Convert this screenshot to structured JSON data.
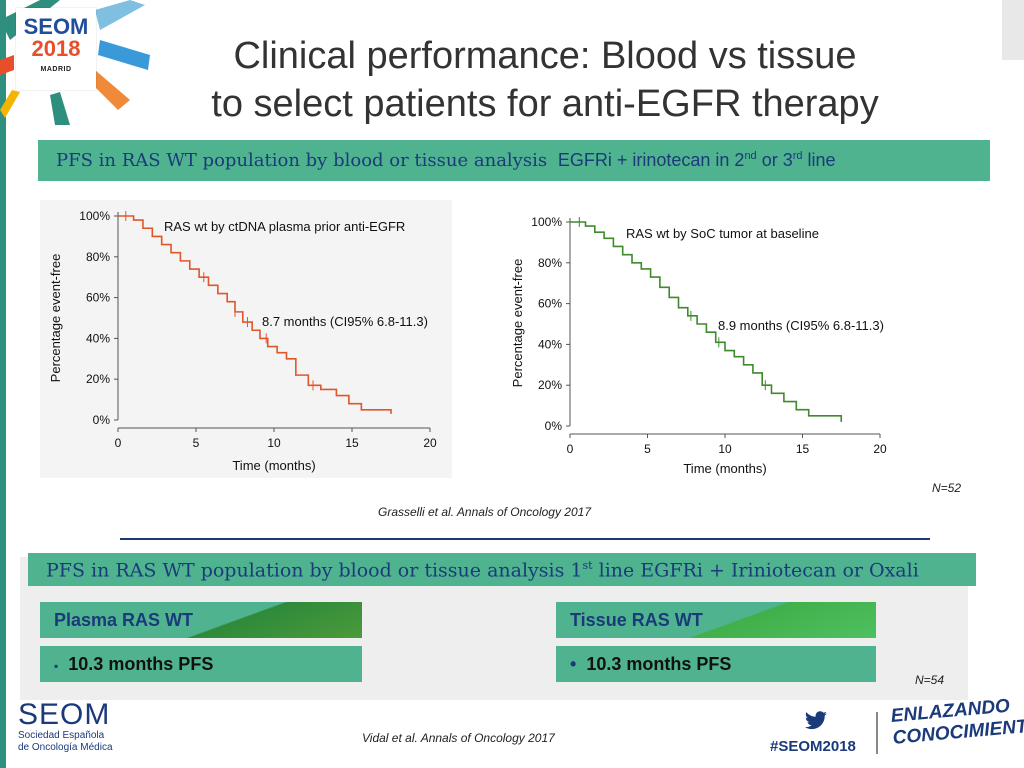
{
  "slide": {
    "logo": {
      "name": "SEOM",
      "year": "2018",
      "city": "MADRID"
    },
    "title_line1": "Clinical performance:  Blood vs tissue",
    "title_line2": "to select patients for anti-EGFR therapy",
    "top_banner": {
      "serif_part": "PFS in RAS WT population by blood or tissue analysis",
      "sans_part": "EGFRi + irinotecan in 2",
      "sup1": "nd",
      "mid": " or 3",
      "sup2": "rd",
      "end": " line"
    },
    "n_top": "N=52",
    "citation_top": "Grasselli et al. Annals of Oncology 2017",
    "bottom_banner": {
      "part1": "PFS in RAS WT population by blood or tissue analysis 1",
      "sup": "st",
      "part2": " line EGFRi + Iriniotecan or Oxali"
    },
    "plasma_box": {
      "header": "Plasma RAS WT",
      "bullet": "▪",
      "value": "10.3 months PFS"
    },
    "tissue_box": {
      "header": "Tissue RAS WT",
      "bullet": "•",
      "value": "10.3 months PFS"
    },
    "n_bottom": "N=54",
    "citation_bottom": "Vidal et al. Annals of Oncology 2017",
    "footer": {
      "seom": "SEOM",
      "seom_sub1": "Sociedad Española",
      "seom_sub2": "de Oncología Médica",
      "hashtag": "#SEOM2018",
      "twitter_icon": "twitter-bird-icon",
      "tagline1": "ENLAZANDO",
      "tagline2": "CONOCIMIENTO"
    }
  },
  "colors": {
    "green": "#4fb38f",
    "navy": "#1b3a7a",
    "plasma_curve": "#e0562b",
    "tissue_curve": "#3f8a2a"
  },
  "chart_data": [
    {
      "type": "line",
      "step": true,
      "title": "RAS wt by ctDNA plasma prior anti-EGFR",
      "annotation": "8.7 months (CI95% 6.8-11.3)",
      "xlabel": "Time (months)",
      "ylabel": "Percentage event-free",
      "xlim": [
        0,
        20
      ],
      "ylim": [
        0,
        100
      ],
      "xticks": [
        "0",
        "5",
        "10",
        "15",
        "20"
      ],
      "yticks": [
        "0%",
        "20%",
        "40%",
        "60%",
        "80%",
        "100%"
      ],
      "series": [
        {
          "name": "Plasma RAS wt",
          "x": [
            0,
            1.0,
            1.6,
            2.2,
            2.8,
            3.4,
            4.0,
            4.6,
            5.2,
            5.8,
            6.4,
            7.0,
            7.5,
            8.0,
            8.6,
            9.1,
            9.6,
            10.2,
            10.8,
            11.4,
            12.2,
            13.0,
            14.0,
            14.8,
            15.6,
            17.5
          ],
          "y": [
            100,
            98,
            94,
            90,
            86,
            82,
            78,
            74,
            70,
            66,
            62,
            58,
            53,
            48,
            44,
            40,
            36,
            33,
            30,
            22,
            17,
            15,
            12,
            8,
            5,
            3
          ]
        }
      ],
      "censor_x": [
        0.5,
        5.5,
        7.5,
        8.3,
        9.5,
        12.5
      ]
    },
    {
      "type": "line",
      "step": true,
      "title": "RAS wt by SoC tumor at baseline",
      "annotation": "8.9 months (CI95% 6.8-11.3)",
      "xlabel": "Time (months)",
      "ylabel": "Percentage event-free",
      "xlim": [
        0,
        20
      ],
      "ylim": [
        0,
        100
      ],
      "xticks": [
        "0",
        "5",
        "10",
        "15",
        "20"
      ],
      "yticks": [
        "0%",
        "20%",
        "40%",
        "60%",
        "80%",
        "100%"
      ],
      "series": [
        {
          "name": "Tissue RAS wt",
          "x": [
            0,
            1.0,
            1.6,
            2.2,
            2.8,
            3.4,
            4.0,
            4.6,
            5.2,
            5.8,
            6.4,
            7.0,
            7.6,
            8.2,
            8.8,
            9.4,
            10.0,
            10.6,
            11.2,
            11.8,
            12.4,
            13.0,
            13.8,
            14.6,
            15.4,
            17.5
          ],
          "y": [
            100,
            98,
            95,
            92,
            88,
            84,
            80,
            77,
            73,
            68,
            63,
            58,
            54,
            50,
            46,
            41,
            37,
            34,
            30,
            26,
            20,
            16,
            12,
            8,
            5,
            2
          ]
        }
      ],
      "censor_x": [
        0.6,
        7.8,
        9.6,
        12.6
      ]
    }
  ]
}
